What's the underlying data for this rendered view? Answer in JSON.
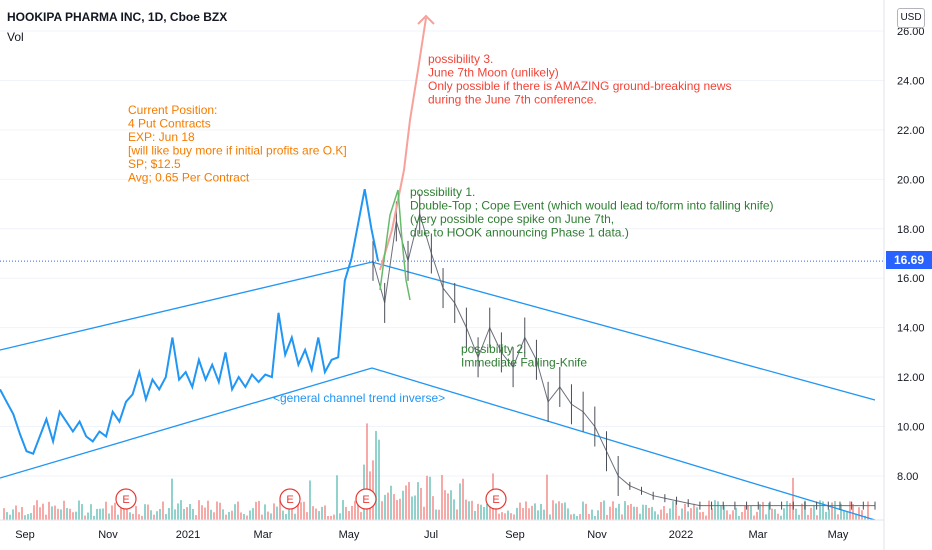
{
  "header": {
    "title": "HOOKIPA PHARMA INC, 1D, Cboe BZX",
    "volume_label": "Vol",
    "currency": "USD"
  },
  "chart_data": {
    "type": "line",
    "ylim": [
      6.8,
      26.4
    ],
    "y_ticks": [
      "26.00",
      "24.00",
      "22.00",
      "20.00",
      "18.00",
      "16.00",
      "14.00",
      "12.00",
      "10.00",
      "8.00"
    ],
    "x_ticks": [
      "Sep",
      "Nov",
      "2021",
      "Mar",
      "May",
      "Jul",
      "Sep",
      "Nov",
      "2022",
      "Mar",
      "May"
    ],
    "last_price": 16.69,
    "last_price_label": "16.69",
    "series": [
      {
        "values": [
          11.5,
          11.0,
          10.5,
          9.7,
          9.0,
          8.9,
          9.6,
          10.3,
          9.4,
          10.6,
          10.2,
          9.8,
          10.2,
          9.6,
          9.4,
          9.8,
          9.6,
          10.6,
          10.2,
          11.0,
          11.3,
          12.2,
          11.1,
          11.9,
          11.5,
          12.0,
          13.6,
          11.9,
          12.2,
          11.6,
          12.7,
          11.9,
          12.5,
          11.8,
          13.0,
          11.5,
          12.0,
          11.6,
          12.1,
          11.8,
          12.1,
          12.0,
          14.6,
          12.9,
          13.6,
          12.5,
          13.1,
          12.3,
          13.6,
          12.2,
          12.7,
          12.8,
          15.9,
          16.8,
          18.2,
          19.6,
          18.0,
          16.7
        ]
      },
      {
        "values": [
          16.7,
          15.0,
          18.3,
          16.7,
          18.6,
          17.0,
          15.6,
          15.0,
          14.0,
          12.8,
          14.0,
          13.0,
          12.4,
          13.6,
          12.7,
          11.0,
          11.6,
          10.9,
          10.6,
          10.0,
          9.0,
          8.0,
          7.6,
          7.4,
          7.2,
          7.1,
          7.0,
          6.9,
          6.8,
          6.8,
          6.8,
          6.8,
          6.8,
          6.8,
          6.8,
          6.8,
          6.8,
          6.8,
          6.8,
          6.8,
          6.8,
          6.8,
          6.8,
          6.8
        ]
      }
    ],
    "annotations": {
      "position": [
        "Current Position:",
        "4 Put Contracts",
        "EXP: Jun 18",
        "[will like buy more if initial profits are O.K]",
        "SP; $12.5",
        "Avg; 0.65 Per Contract"
      ],
      "possibility1": [
        "possibility 1.",
        "Double-Top ; Cope Event (which would lead to/form into falling knife)",
        "(very possible cope spike on June 7th,",
        "due to HOOK announcing Phase 1 data.)"
      ],
      "possibility2": [
        "possibility 2.",
        "Immediate Falling-Knife"
      ],
      "possibility3": [
        "possibility 3.",
        "June 7th Moon (unlikely)",
        "Only possible if there is AMAZING ground-breaking news",
        "during the June 7th conference."
      ],
      "channel": "<general channel trend inverse>"
    },
    "earnings_marker": "E",
    "colors": {
      "price": "#2196f3",
      "channel": "#2196f3",
      "bar": "#787b86",
      "position_text": "#f57c00",
      "possibility1_text": "#2e7d32",
      "possibility2_text": "#2e7d32",
      "possibility3_text": "#f44336",
      "channel_text": "#2196f3",
      "earnings": "#e53935"
    }
  }
}
